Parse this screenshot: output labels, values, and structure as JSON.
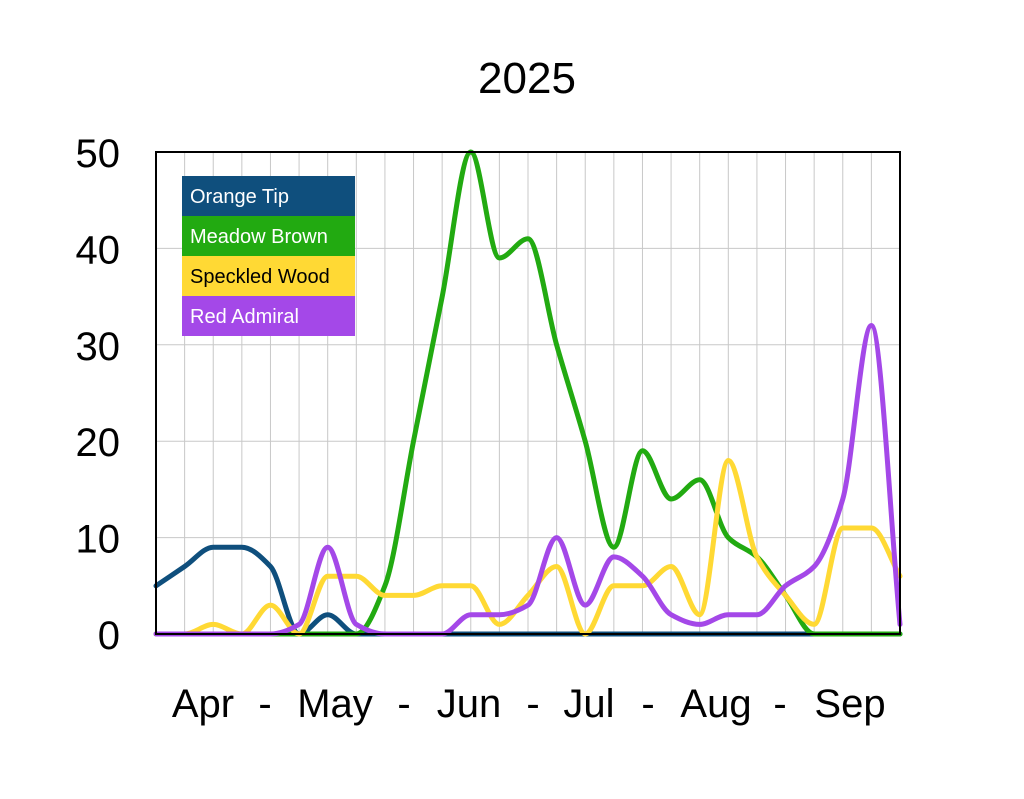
{
  "chart_data": {
    "type": "line",
    "title": "2025",
    "xlabel": "Apr  -  May  -  Jun  -  Jul  -  Aug  -  Sep",
    "ylabel": "",
    "ylim": [
      0,
      50
    ],
    "yticks": [
      "0",
      "10",
      "20",
      "30",
      "40",
      "50"
    ],
    "x_month_labels": [
      "Apr",
      "-",
      "May",
      "-",
      "Jun",
      "-",
      "Jul",
      "-",
      "Aug",
      "-",
      "Sep"
    ],
    "x_points": 27,
    "grid": true,
    "legend": "top-left",
    "series": [
      {
        "name": "Orange Tip",
        "color": "#0f4f7d",
        "values": [
          5,
          7,
          9,
          9,
          7,
          0,
          2,
          0,
          0,
          0,
          0,
          0,
          0,
          0,
          0,
          0,
          0,
          0,
          0,
          0,
          0,
          0,
          0,
          0,
          0,
          0,
          0
        ]
      },
      {
        "name": "Meadow Brown",
        "color": "#22aa11",
        "values": [
          0,
          0,
          0,
          0,
          0,
          0,
          0,
          0,
          5,
          20,
          35,
          50,
          39,
          41,
          30,
          20,
          9,
          19,
          14,
          16,
          10,
          8,
          4,
          0,
          0,
          0,
          0
        ]
      },
      {
        "name": "Speckled Wood",
        "color": "#ffd934",
        "values": [
          0,
          0,
          1,
          0,
          3,
          0,
          6,
          6,
          4,
          4,
          5,
          5,
          1,
          4,
          7,
          0,
          5,
          5,
          7,
          2,
          18,
          8,
          4,
          1,
          11,
          11,
          6
        ]
      },
      {
        "name": "Red Admiral",
        "color": "#a448e8",
        "values": [
          0,
          0,
          0,
          0,
          0,
          1,
          9,
          1,
          0,
          0,
          0,
          2,
          2,
          3,
          10,
          3,
          8,
          6,
          2,
          1,
          2,
          2,
          5,
          7,
          14,
          32,
          1
        ]
      }
    ]
  }
}
